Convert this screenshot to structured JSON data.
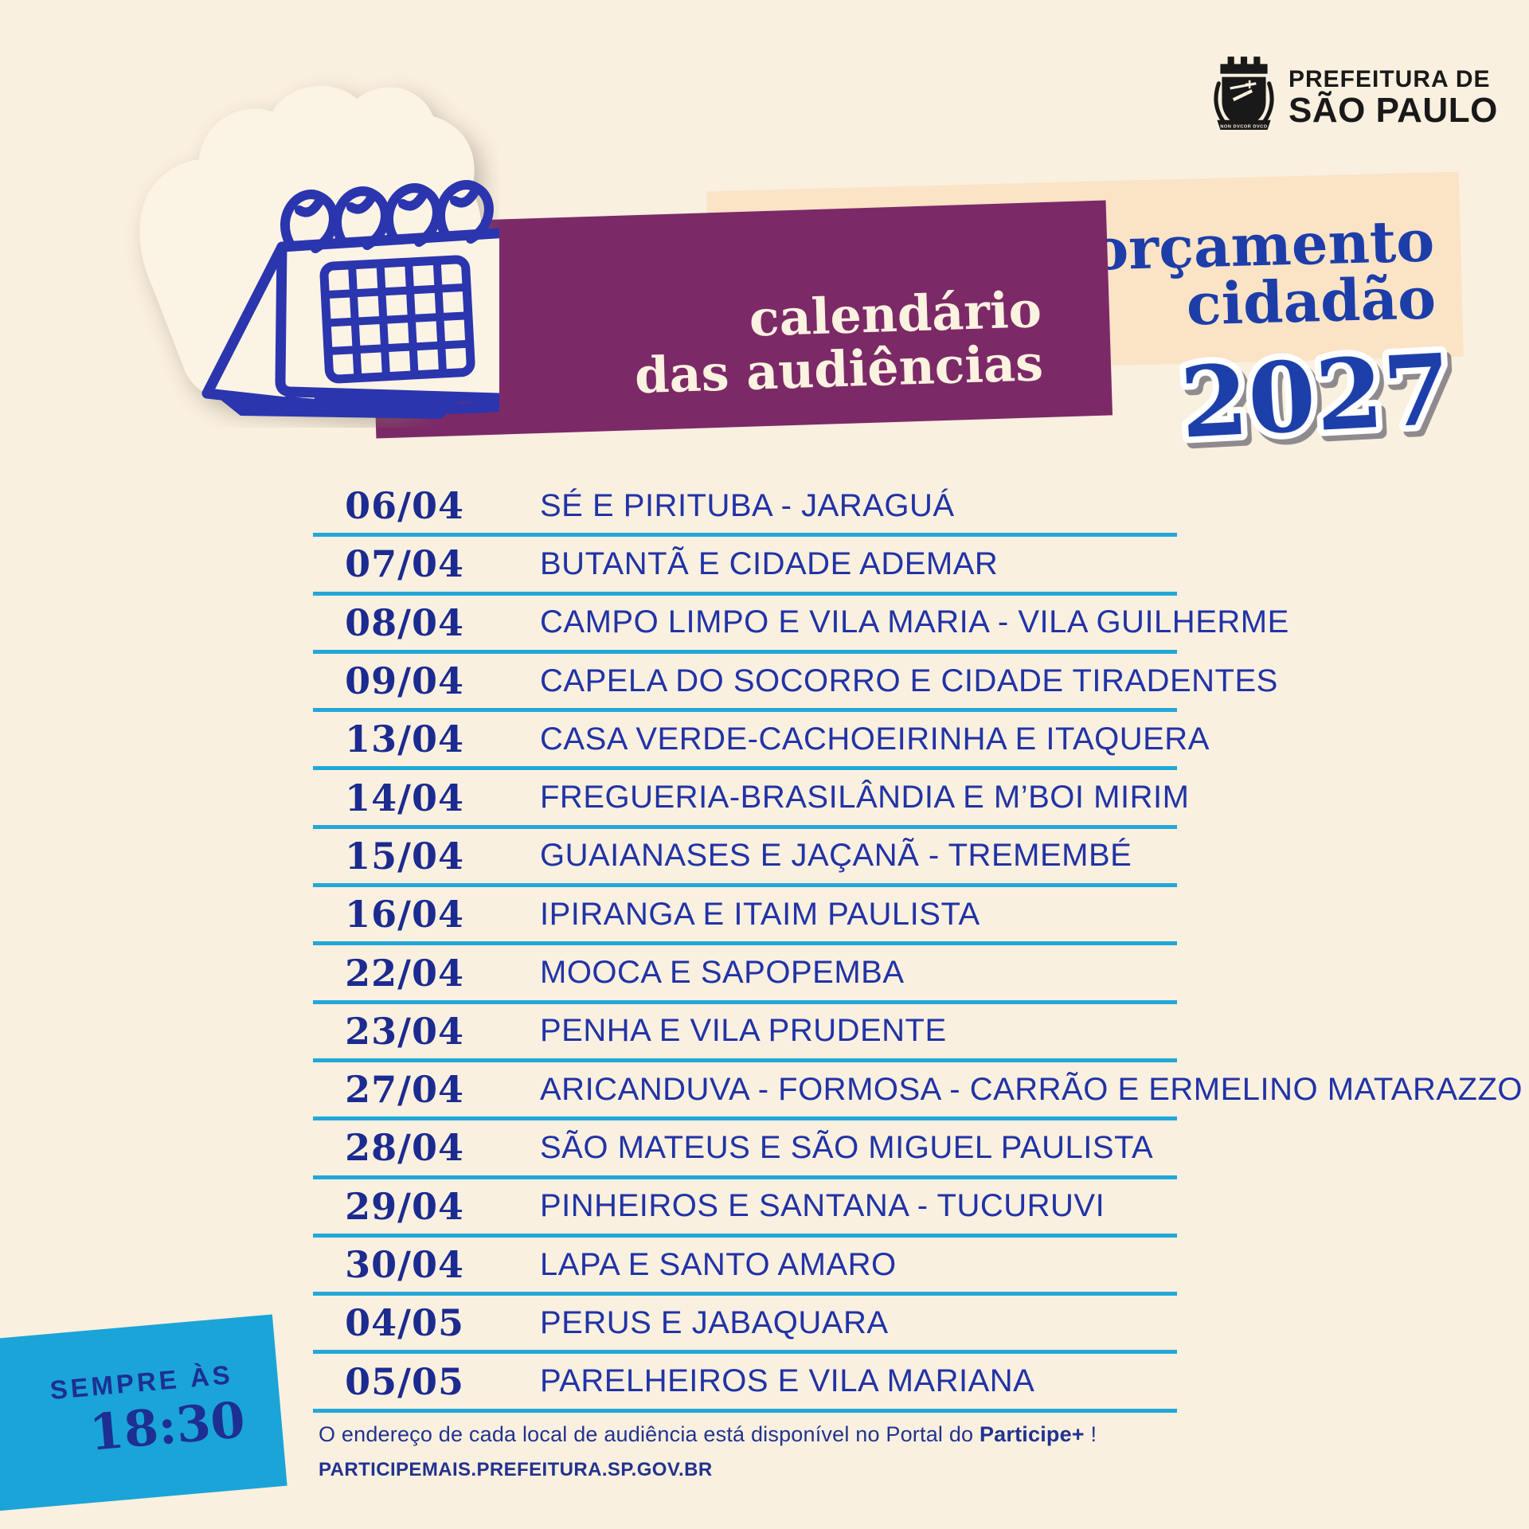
{
  "colors": {
    "background": "#FAF0DF",
    "peach_banner": "#FBE3C6",
    "purple_banner": "#7C2968",
    "cream_text": "#FBF2DF",
    "blue_heading": "#1D3EA9",
    "navy_date": "#1C2B90",
    "blue_location": "#2133A6",
    "cyan_line": "#23A7D8",
    "cyan_box": "#1BA4D8",
    "navy_badge_text": "#1D2F93",
    "logo_black": "#191919",
    "illustration_blue": "#2B35AE"
  },
  "logo": {
    "org_line1": "PREFEITURA DE",
    "org_line2": "SÃO PAULO",
    "crest_motto": "NON DVCOR DVCO"
  },
  "header": {
    "title_line1": "calendário",
    "title_line2": "das audiências",
    "program_line1": "orçamento",
    "program_line2": "cidadão",
    "year": "2027"
  },
  "schedule": {
    "rows": [
      {
        "date": "06/04",
        "location": "SÉ E PIRITUBA - JARAGUÁ"
      },
      {
        "date": "07/04",
        "location": "BUTANTÃ E CIDADE ADEMAR"
      },
      {
        "date": "08/04",
        "location": "CAMPO LIMPO E VILA MARIA - VILA GUILHERME"
      },
      {
        "date": "09/04",
        "location": "CAPELA DO SOCORRO E CIDADE TIRADENTES"
      },
      {
        "date": "13/04",
        "location": "CASA VERDE-CACHOEIRINHA E ITAQUERA"
      },
      {
        "date": "14/04",
        "location": "FREGUERIA-BRASILÂNDIA E M’BOI MIRIM"
      },
      {
        "date": "15/04",
        "location": "GUAIANASES E JAÇANÃ - TREMEMBÉ"
      },
      {
        "date": "16/04",
        "location": "IPIRANGA E ITAIM PAULISTA"
      },
      {
        "date": "22/04",
        "location": "MOOCA E SAPOPEMBA"
      },
      {
        "date": "23/04",
        "location": "PENHA E VILA PRUDENTE"
      },
      {
        "date": "27/04",
        "location": "ARICANDUVA - FORMOSA - CARRÃO E ERMELINO MATARAZZO"
      },
      {
        "date": "28/04",
        "location": "SÃO MATEUS E SÃO MIGUEL PAULISTA"
      },
      {
        "date": "29/04",
        "location": "PINHEIROS E SANTANA - TUCURUVI"
      },
      {
        "date": "30/04",
        "location": "LAPA E SANTO AMARO"
      },
      {
        "date": "04/05",
        "location": "PERUS E JABAQUARA"
      },
      {
        "date": "05/05",
        "location": "PARELHEIROS E VILA MARIANA"
      }
    ]
  },
  "time_badge": {
    "label": "SEMPRE ÀS",
    "time": "18:30"
  },
  "footer": {
    "note_prefix": "O endereço de cada local de audiência está disponível no Portal do ",
    "note_bold": "Participe+",
    "note_suffix": " !",
    "url": "PARTICIPEMAIS.PREFEITURA.SP.GOV.BR"
  }
}
